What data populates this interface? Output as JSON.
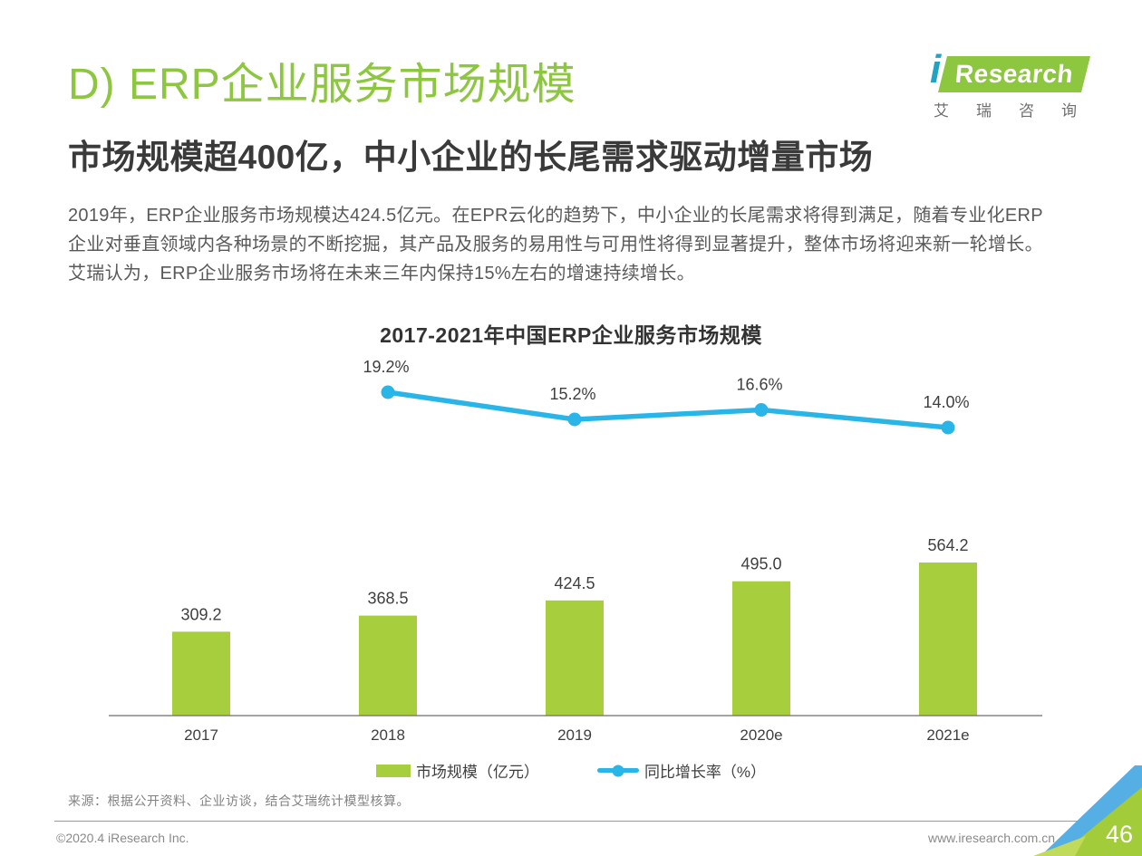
{
  "page": {
    "section_label": "D) ERP企业服务市场规模",
    "headline": "市场规模超400亿，中小企业的长尾需求驱动增量市场",
    "body_lines": [
      "2019年，ERP企业服务市场规模达424.5亿元。在EPR云化的趋势下，中小企业的长尾需求将得到满足，随着专业化ERP",
      "企业对垂直领域内各种场景的不断挖掘，其产品及服务的易用性与可用性将得到显著提升，整体市场将迎来新一轮增长。",
      "艾瑞认为，ERP企业服务市场将在未来三年内保持15%左右的增速持续增长。"
    ],
    "source": "来源：根据公开资料、企业访谈，结合艾瑞统计模型核算。",
    "footer_left": "©2020.4 iResearch Inc.",
    "footer_right": "www.iresearch.com.cn",
    "page_number": "46"
  },
  "logo": {
    "i": "i",
    "wordmark": "Research",
    "subtext": "艾瑞咨询"
  },
  "chart_data": {
    "type": "bar+line",
    "title": "2017-2021年中国ERP企业服务市场规模",
    "categories": [
      "2017",
      "2018",
      "2019",
      "2020e",
      "2021e"
    ],
    "series": [
      {
        "name": "市场规模（亿元）",
        "type": "bar",
        "values": [
          309.2,
          368.5,
          424.5,
          495.0,
          564.2
        ],
        "value_labels": [
          "309.2",
          "368.5",
          "424.5",
          "495.0",
          "564.2"
        ],
        "color": "#a6ce3d"
      },
      {
        "name": "同比增长率（%）",
        "type": "line",
        "values": [
          null,
          19.2,
          15.2,
          16.6,
          14.0
        ],
        "value_labels": [
          "19.2%",
          "15.2%",
          "16.6%",
          "14.0%"
        ],
        "color": "#29b5e8"
      }
    ],
    "legend_position": "bottom",
    "value_labels_shown": true,
    "grid": false
  },
  "colors": {
    "accent_green": "#8dc63f",
    "bar_green": "#a6ce3d",
    "line_blue": "#29b5e8",
    "headline_dark": "#3a3a3a",
    "body_gray": "#595959",
    "footer_gray": "#8a8a8a",
    "corner_blue": "#55aee4",
    "corner_green": "#a3cc3b",
    "corner_light_green": "#c0da5a"
  }
}
